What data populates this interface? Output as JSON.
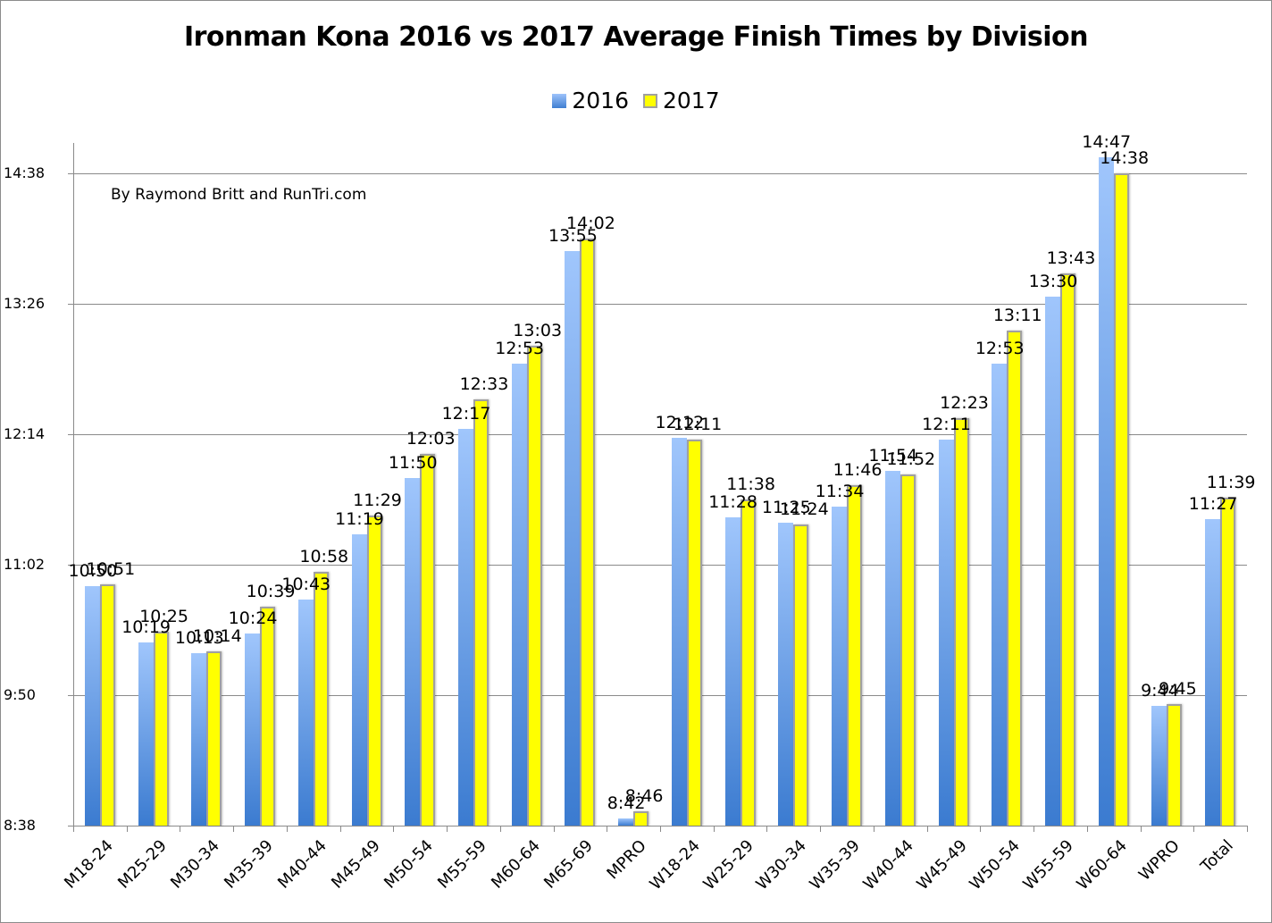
{
  "chart_data": {
    "type": "bar",
    "title": "Ironman Kona 2016 vs 2017 Average Finish Times by Division",
    "subtitle": "By Raymond Britt and RunTri.com",
    "xlabel": "",
    "ylabel": "",
    "categories": [
      "M18-24",
      "M25-29",
      "M30-34",
      "M35-39",
      "M40-44",
      "M45-49",
      "M50-54",
      "M55-59",
      "M60-64",
      "M65-69",
      "MPRO",
      "W18-24",
      "W25-29",
      "W30-34",
      "W35-39",
      "W40-44",
      "W45-49",
      "W50-54",
      "W55-59",
      "W60-64",
      "WPRO",
      "Total"
    ],
    "series": [
      {
        "name": "2016",
        "color": "#6fa3ea",
        "values": [
          "10:50",
          "10:19",
          "10:13",
          "10:24",
          "10:43",
          "11:19",
          "11:50",
          "12:17",
          "12:53",
          "13:55",
          "8:42",
          "12:12",
          "11:28",
          "11:25",
          "11:34",
          "11:54",
          "12:11",
          "12:53",
          "13:30",
          "14:47",
          "9:44",
          "11:27"
        ]
      },
      {
        "name": "2017",
        "color": "#ffff00",
        "values": [
          "10:51",
          "10:25",
          "10:14",
          "10:39",
          "10:58",
          "11:29",
          "12:03",
          "12:33",
          "13:03",
          "14:02",
          "8:46",
          "12:11",
          "11:38",
          "11:24",
          "11:46",
          "11:52",
          "12:23",
          "13:11",
          "13:43",
          "14:38",
          "9:45",
          "11:39"
        ]
      }
    ],
    "yticks": [
      "8:38",
      "9:50",
      "11:02",
      "12:14",
      "13:26",
      "14:38"
    ],
    "ylim": [
      "8:38",
      "15:00"
    ],
    "grid": true,
    "legend_position": "top"
  },
  "legend": {
    "items": [
      {
        "label": "2016"
      },
      {
        "label": "2017"
      }
    ]
  }
}
